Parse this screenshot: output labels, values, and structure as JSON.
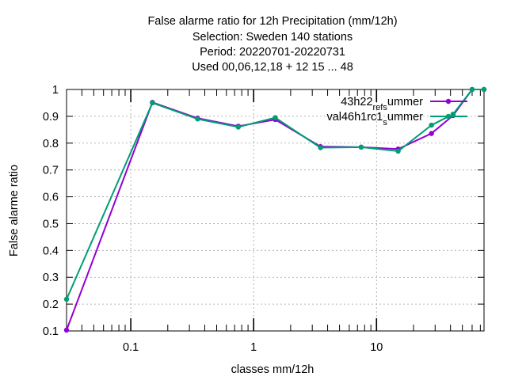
{
  "chart_data": {
    "type": "line",
    "title_lines": [
      "False alarme ratio  for 12h Precipitation (mm/12h)",
      "Selection: Sweden    140 stations",
      "Period: 20220701-20220731",
      "Used  00,06,12,18  + 12 15 ... 48"
    ],
    "xlabel": "classes mm/12h",
    "ylabel": "False alarme ratio",
    "x_scale": "log",
    "xlim": [
      0.03,
      75
    ],
    "ylim": [
      0.1,
      1.0
    ],
    "x_ticks": [
      0.1,
      1,
      10
    ],
    "x_tick_labels": [
      "0.1",
      "1",
      "10"
    ],
    "x_minor_ticks": [
      0.2,
      0.5,
      2,
      5,
      20,
      30,
      40,
      50,
      60,
      70
    ],
    "y_ticks": [
      0.1,
      0.2,
      0.3,
      0.4,
      0.5,
      0.6,
      0.7,
      0.8,
      0.9,
      1.0
    ],
    "y_tick_labels": [
      "0.1",
      "0.2",
      "0.3",
      "0.4",
      "0.5",
      "0.6",
      "0.7",
      "0.8",
      "0.9",
      "1"
    ],
    "grid": true,
    "legend_position": "top-right",
    "series": [
      {
        "name": "43h22_ref_summer",
        "legend_parts": [
          {
            "text": "43h22",
            "shift": "none"
          },
          {
            "text": "ref",
            "shift": "sub"
          },
          {
            "text": "s",
            "shift": "sub"
          },
          {
            "text": "ummer",
            "shift": "none"
          }
        ],
        "color": "#9400d3",
        "marker": "circle",
        "x": [
          0.03,
          0.15,
          0.35,
          0.75,
          1.5,
          3.5,
          7.5,
          15,
          28,
          42,
          60,
          75
        ],
        "y": [
          0.103,
          0.952,
          0.893,
          0.863,
          0.888,
          0.787,
          0.785,
          0.778,
          0.836,
          0.903,
          1.0,
          1.0
        ]
      },
      {
        "name": "val46h1rc1_summer",
        "legend_parts": [
          {
            "text": "val46h1rc1",
            "shift": "none"
          },
          {
            "text": "s",
            "shift": "sub"
          },
          {
            "text": "ummer",
            "shift": "none"
          }
        ],
        "color": "#009e73",
        "marker": "circle",
        "x": [
          0.03,
          0.15,
          0.35,
          0.75,
          1.5,
          3.5,
          7.5,
          15,
          28,
          42,
          60,
          75
        ],
        "y": [
          0.218,
          0.95,
          0.89,
          0.86,
          0.895,
          0.783,
          0.785,
          0.77,
          0.867,
          0.908,
          1.0,
          1.0
        ]
      }
    ]
  }
}
